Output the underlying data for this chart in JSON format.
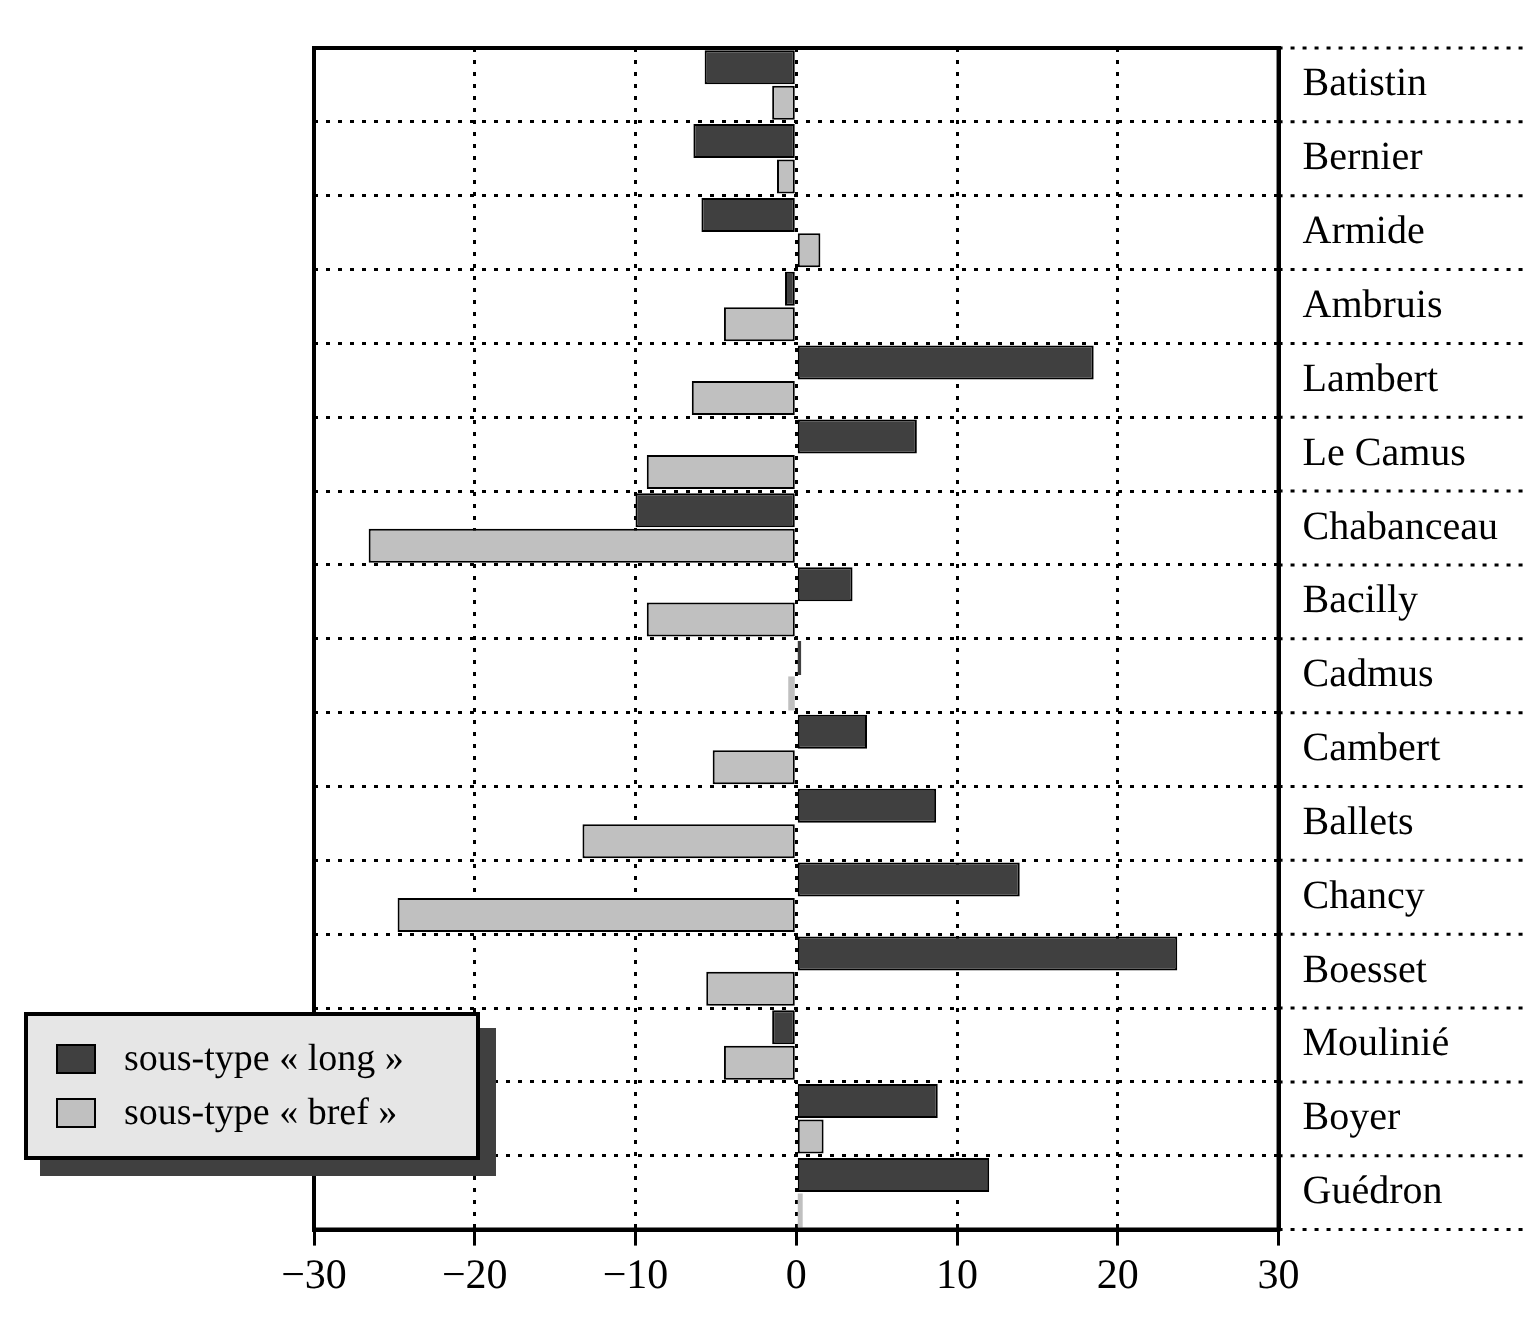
{
  "chart_data": {
    "type": "bar",
    "orientation": "horizontal",
    "categories": [
      "Batistin",
      "Bernier",
      "Armide",
      "Ambruis",
      "Lambert",
      "Le Camus",
      "Chabanceau",
      "Bacilly",
      "Cadmus",
      "Cambert",
      "Ballets",
      "Chancy",
      "Boesset",
      "Moulinié",
      "Boyer",
      "Guédron"
    ],
    "series": [
      {
        "name": "sous-type « long »",
        "color": "#404040",
        "values": [
          -5.7,
          -6.4,
          -5.9,
          -0.7,
          18.5,
          7.5,
          -10.0,
          3.5,
          0.3,
          4.4,
          8.7,
          13.9,
          23.7,
          -1.5,
          8.8,
          12.0
        ]
      },
      {
        "name": "sous-type « bref »",
        "color": "#c0c0c0",
        "values": [
          -1.5,
          -1.2,
          1.5,
          -4.5,
          -6.5,
          -9.3,
          -26.6,
          -9.3,
          -0.5,
          -5.2,
          -13.3,
          -24.8,
          -5.6,
          -4.5,
          1.7,
          0.4
        ]
      }
    ],
    "xlim": [
      -30,
      30
    ],
    "xticks": [
      {
        "value": -30,
        "label": "−30"
      },
      {
        "value": -20,
        "label": "−20"
      },
      {
        "value": -10,
        "label": "−10"
      },
      0,
      10,
      20,
      30
    ],
    "grid": true,
    "legend": "bottom left"
  }
}
